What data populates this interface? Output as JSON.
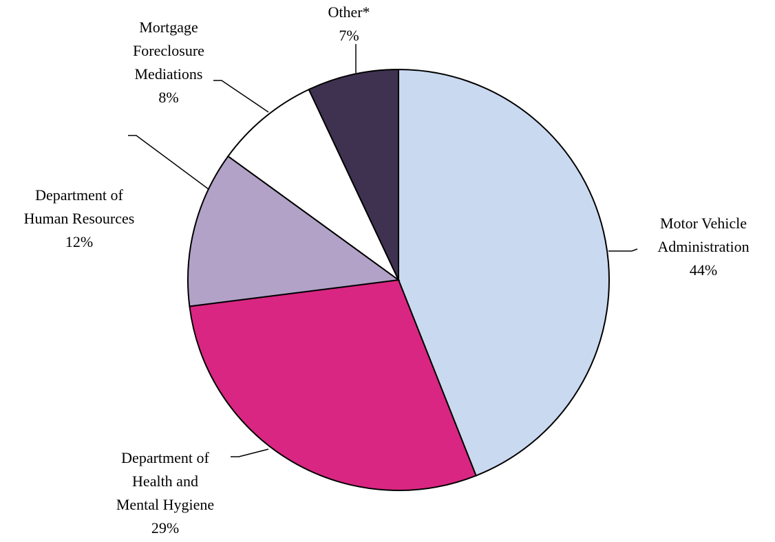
{
  "chart_data": {
    "type": "pie",
    "categories": [
      "Motor Vehicle\nAdministration",
      "Department of\nHealth and\nMental Hygiene",
      "Department of\nHuman Resources",
      "Mortgage\nForeclosure\nMediations",
      "Other*"
    ],
    "values": [
      44,
      29,
      12,
      8,
      7
    ],
    "value_labels": [
      "44%",
      "29%",
      "12%",
      "8%",
      "7%"
    ],
    "colors": [
      "#c9d9f0",
      "#d92682",
      "#b2a2c8",
      "#ffffff",
      "#3f3250"
    ]
  }
}
